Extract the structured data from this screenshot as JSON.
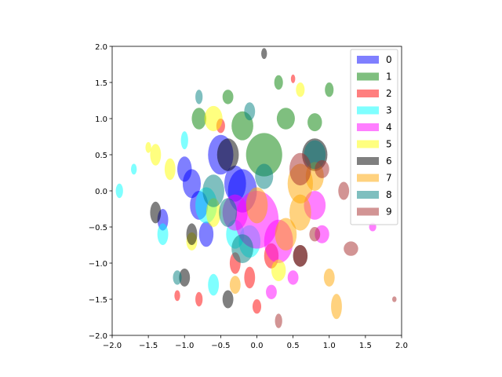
{
  "chart_data": {
    "type": "ellipse-scatter",
    "xlim": [
      -2,
      2
    ],
    "ylim": [
      -2,
      2
    ],
    "xticks": [
      {
        "value": -2,
        "label": "−2.0"
      },
      {
        "value": -1.5,
        "label": "−1.5"
      },
      {
        "value": -1,
        "label": "−1.0"
      },
      {
        "value": -0.5,
        "label": "−0.5"
      },
      {
        "value": 0,
        "label": "0.0"
      },
      0.5,
      {
        "value": 1,
        "label": "1.0"
      },
      1.5,
      {
        "value": 2,
        "label": "2.0"
      }
    ],
    "yticks": [
      {
        "value": -2,
        "label": "−2.0"
      },
      {
        "value": -1.5,
        "label": "−1.5"
      },
      {
        "value": -1,
        "label": "−1.0"
      },
      {
        "value": -0.5,
        "label": "−0.5"
      },
      {
        "value": 0,
        "label": "0.0"
      },
      0.5,
      {
        "value": 1,
        "label": "1.0"
      },
      1.5,
      {
        "value": 2,
        "label": "2.0"
      }
    ],
    "alpha": 0.5,
    "legend": "upper right",
    "series": [
      {
        "name": "0",
        "color": "#0000ff",
        "x": [
          -0.3,
          -0.8,
          -1.0,
          -0.5,
          -1.3,
          -0.2,
          -0.7,
          -0.9
        ],
        "values": [
          0.1,
          -0.2,
          0.3,
          0.5,
          -0.4,
          0.0,
          -0.6,
          0.1
        ],
        "widths": [
          0.3,
          0.25,
          0.2,
          0.35,
          0.15,
          0.4,
          0.2,
          0.25
        ],
        "heights": [
          0.5,
          0.4,
          0.35,
          0.55,
          0.3,
          0.6,
          0.35,
          0.4
        ]
      },
      {
        "name": "1",
        "color": "#008000",
        "x": [
          0.1,
          -0.2,
          0.4,
          0.8,
          -0.4,
          0.3,
          -0.8,
          1.0
        ],
        "values": [
          0.5,
          0.9,
          1.0,
          0.95,
          1.3,
          1.5,
          1.0,
          1.4
        ],
        "widths": [
          0.5,
          0.3,
          0.25,
          0.2,
          0.15,
          0.12,
          0.2,
          0.12
        ],
        "heights": [
          0.6,
          0.4,
          0.3,
          0.25,
          0.2,
          0.2,
          0.3,
          0.2
        ]
      },
      {
        "name": "2",
        "color": "#ff0000",
        "x": [
          -0.1,
          -0.8,
          0.2,
          -0.5,
          0.5,
          -1.1,
          0.0,
          -0.3
        ],
        "values": [
          -1.2,
          -1.5,
          -0.9,
          0.9,
          1.55,
          -1.45,
          -1.6,
          -1.0
        ],
        "widths": [
          0.15,
          0.1,
          0.2,
          0.12,
          0.06,
          0.08,
          0.12,
          0.15
        ],
        "heights": [
          0.3,
          0.2,
          0.35,
          0.2,
          0.12,
          0.15,
          0.2,
          0.3
        ]
      },
      {
        "name": "3",
        "color": "#00ffff",
        "x": [
          -1.3,
          -0.7,
          -0.3,
          -1.7,
          -0.1,
          -1.0,
          -1.9,
          -0.6
        ],
        "values": [
          -0.6,
          -0.2,
          -0.6,
          0.3,
          -0.7,
          0.7,
          0.0,
          -1.3
        ],
        "widths": [
          0.15,
          0.3,
          0.25,
          0.08,
          0.3,
          0.1,
          0.1,
          0.15
        ],
        "heights": [
          0.3,
          0.5,
          0.4,
          0.15,
          0.45,
          0.25,
          0.2,
          0.3
        ]
      },
      {
        "name": "4",
        "color": "#ff00ff",
        "x": [
          0.0,
          0.3,
          -0.3,
          0.8,
          0.9,
          0.5,
          1.6,
          0.2
        ],
        "values": [
          -0.4,
          -0.7,
          -0.3,
          -0.2,
          -0.6,
          -1.2,
          -0.5,
          -1.4
        ],
        "widths": [
          0.6,
          0.4,
          0.35,
          0.3,
          0.2,
          0.15,
          0.1,
          0.15
        ],
        "heights": [
          0.8,
          0.6,
          0.5,
          0.4,
          0.25,
          0.2,
          0.12,
          0.2
        ]
      },
      {
        "name": "5",
        "color": "#ffff00",
        "x": [
          -0.6,
          -1.2,
          0.6,
          -1.4,
          0.3,
          -0.9,
          -0.6,
          -1.5
        ],
        "values": [
          1.0,
          0.3,
          1.4,
          0.5,
          -1.1,
          -0.7,
          -0.3,
          0.6
        ],
        "widths": [
          0.25,
          0.15,
          0.12,
          0.15,
          0.2,
          0.15,
          0.2,
          0.08
        ],
        "heights": [
          0.35,
          0.3,
          0.2,
          0.3,
          0.3,
          0.25,
          0.4,
          0.15
        ]
      },
      {
        "name": "6",
        "color": "#000000",
        "x": [
          -0.9,
          -1.4,
          -0.4,
          0.6,
          0.8,
          -1.0,
          -0.4,
          0.1
        ],
        "values": [
          -0.6,
          -0.3,
          0.5,
          -0.9,
          0.5,
          -1.2,
          -1.5,
          1.9
        ],
        "widths": [
          0.15,
          0.15,
          0.3,
          0.2,
          0.35,
          0.15,
          0.15,
          0.08
        ],
        "heights": [
          0.3,
          0.3,
          0.45,
          0.3,
          0.45,
          0.25,
          0.25,
          0.15
        ]
      },
      {
        "name": "7",
        "color": "#ffa500",
        "x": [
          0.6,
          0.4,
          0.0,
          1.1,
          -0.3,
          0.8,
          0.6,
          1.0
        ],
        "values": [
          0.1,
          -0.6,
          -0.2,
          -1.6,
          -1.3,
          0.2,
          -0.3,
          -1.2
        ],
        "widths": [
          0.35,
          0.3,
          0.3,
          0.15,
          0.15,
          0.25,
          0.3,
          0.15
        ],
        "heights": [
          0.55,
          0.45,
          0.5,
          0.35,
          0.25,
          0.4,
          0.5,
          0.25
        ]
      },
      {
        "name": "8",
        "color": "#008080",
        "x": [
          -0.6,
          -0.2,
          0.8,
          -0.1,
          -1.1,
          -0.8,
          0.1,
          -0.4
        ],
        "values": [
          0.0,
          -0.8,
          0.5,
          1.1,
          -1.2,
          1.3,
          0.2,
          -0.3
        ],
        "widths": [
          0.3,
          0.3,
          0.3,
          0.15,
          0.12,
          0.1,
          0.25,
          0.25
        ],
        "heights": [
          0.45,
          0.4,
          0.4,
          0.25,
          0.2,
          0.2,
          0.35,
          0.4
        ]
      },
      {
        "name": "9",
        "color": "#a52a2a",
        "x": [
          0.6,
          0.9,
          1.3,
          0.3,
          1.2,
          0.8,
          1.9,
          0.6
        ],
        "values": [
          -0.9,
          0.3,
          -0.8,
          -1.8,
          0.0,
          -0.6,
          -1.5,
          0.3
        ],
        "widths": [
          0.2,
          0.2,
          0.2,
          0.1,
          0.15,
          0.15,
          0.06,
          0.3
        ],
        "heights": [
          0.3,
          0.25,
          0.2,
          0.2,
          0.25,
          0.2,
          0.08,
          0.45
        ]
      }
    ]
  }
}
